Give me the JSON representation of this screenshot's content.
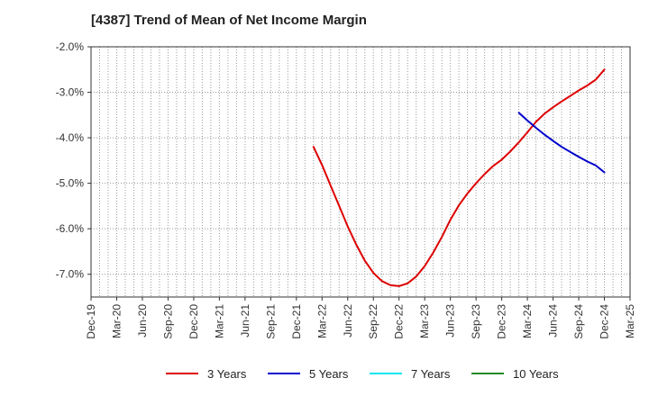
{
  "chart_data": {
    "type": "line",
    "title": "[4387]  Trend of Mean of Net Income Margin",
    "xlabel": "",
    "ylabel": "",
    "x_ticks": [
      "Dec-19",
      "Mar-20",
      "Jun-20",
      "Sep-20",
      "Dec-20",
      "Mar-21",
      "Jun-21",
      "Sep-21",
      "Dec-21",
      "Mar-22",
      "Jun-22",
      "Sep-22",
      "Dec-22",
      "Mar-23",
      "Jun-23",
      "Sep-23",
      "Dec-23",
      "Mar-24",
      "Jun-24",
      "Sep-24",
      "Dec-24",
      "Mar-25"
    ],
    "y_ticks": [
      "-2.0%",
      "-3.0%",
      "-4.0%",
      "-5.0%",
      "-6.0%",
      "-7.0%"
    ],
    "y_tick_values": [
      -2.0,
      -3.0,
      -4.0,
      -5.0,
      -6.0,
      -7.0
    ],
    "ylim": [
      -7.5,
      -2.0
    ],
    "grid": true,
    "legend_position": "bottom",
    "series": [
      {
        "name": "3 Years",
        "color": "#dd0000",
        "points": [
          [
            "Feb-22",
            -4.2
          ],
          [
            "Mar-22",
            -4.6
          ],
          [
            "Apr-22",
            -5.05
          ],
          [
            "May-22",
            -5.5
          ],
          [
            "Jun-22",
            -5.95
          ],
          [
            "Jul-22",
            -6.35
          ],
          [
            "Aug-22",
            -6.7
          ],
          [
            "Sep-22",
            -6.97
          ],
          [
            "Oct-22",
            -7.15
          ],
          [
            "Nov-22",
            -7.24
          ],
          [
            "Dec-22",
            -7.26
          ],
          [
            "Jan-23",
            -7.2
          ],
          [
            "Feb-23",
            -7.05
          ],
          [
            "Mar-23",
            -6.82
          ],
          [
            "Apr-23",
            -6.52
          ],
          [
            "May-23",
            -6.18
          ],
          [
            "Jun-23",
            -5.8
          ],
          [
            "Jul-23",
            -5.48
          ],
          [
            "Aug-23",
            -5.22
          ],
          [
            "Sep-23",
            -5.0
          ],
          [
            "Oct-23",
            -4.8
          ],
          [
            "Nov-23",
            -4.62
          ],
          [
            "Dec-23",
            -4.48
          ],
          [
            "Jan-24",
            -4.3
          ],
          [
            "Feb-24",
            -4.1
          ],
          [
            "Mar-24",
            -3.88
          ],
          [
            "Apr-24",
            -3.65
          ],
          [
            "May-24",
            -3.47
          ],
          [
            "Jun-24",
            -3.33
          ],
          [
            "Jul-24",
            -3.2
          ],
          [
            "Aug-24",
            -3.08
          ],
          [
            "Sep-24",
            -2.96
          ],
          [
            "Oct-24",
            -2.85
          ],
          [
            "Nov-24",
            -2.72
          ],
          [
            "Dec-24",
            -2.5
          ]
        ]
      },
      {
        "name": "5 Years",
        "color": "#0000cc",
        "points": [
          [
            "Feb-24",
            -3.45
          ],
          [
            "Mar-24",
            -3.62
          ],
          [
            "Apr-24",
            -3.78
          ],
          [
            "May-24",
            -3.93
          ],
          [
            "Jun-24",
            -4.07
          ],
          [
            "Jul-24",
            -4.2
          ],
          [
            "Aug-24",
            -4.31
          ],
          [
            "Sep-24",
            -4.42
          ],
          [
            "Oct-24",
            -4.52
          ],
          [
            "Nov-24",
            -4.61
          ],
          [
            "Dec-24",
            -4.76
          ]
        ]
      },
      {
        "name": "7 Years",
        "color": "#00e5ee",
        "points": []
      },
      {
        "name": "10 Years",
        "color": "#228b22",
        "points": []
      }
    ]
  }
}
